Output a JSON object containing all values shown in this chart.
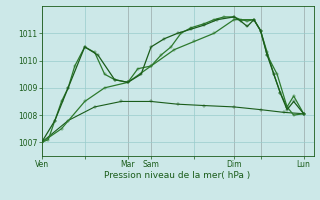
{
  "bg_color": "#cce8e8",
  "grid_color": "#99cccc",
  "line_color_dark": "#1a5c1a",
  "line_color_mid": "#2d7a2d",
  "xlabel": "Pression niveau de la mer( hPa )",
  "ylim": [
    1006.5,
    1012.0
  ],
  "yticks": [
    1007,
    1008,
    1009,
    1010,
    1011
  ],
  "xtick_labels": [
    "Ven",
    "",
    "Mar",
    "Sam",
    "",
    "Dim",
    "",
    "Lun"
  ],
  "xtick_positions": [
    0,
    13,
    26,
    33,
    46,
    58,
    66,
    79
  ],
  "vline_positions": [
    0,
    26,
    33,
    58,
    66,
    79
  ],
  "vline_color": "#cc8888",
  "xlim": [
    0,
    82
  ],
  "series1_x": [
    0,
    2,
    4,
    6,
    8,
    10,
    13,
    16,
    19,
    22,
    26,
    29,
    33,
    36,
    39,
    42,
    45,
    49,
    52,
    55,
    58,
    60,
    62,
    64,
    66,
    68,
    70,
    72,
    74,
    76,
    79
  ],
  "series1_y": [
    1007.0,
    1007.1,
    1007.8,
    1008.5,
    1009.0,
    1009.8,
    1010.5,
    1010.3,
    1009.5,
    1009.3,
    1009.2,
    1009.7,
    1009.8,
    1010.2,
    1010.5,
    1011.0,
    1011.2,
    1011.35,
    1011.5,
    1011.6,
    1011.6,
    1011.5,
    1011.45,
    1011.5,
    1011.1,
    1010.3,
    1009.5,
    1008.8,
    1008.3,
    1008.0,
    1008.05
  ],
  "series2_x": [
    0,
    4,
    8,
    13,
    17,
    22,
    26,
    30,
    33,
    37,
    41,
    45,
    49,
    53,
    58,
    60,
    62,
    64,
    66,
    68,
    70,
    72,
    74,
    76,
    79
  ],
  "series2_y": [
    1007.0,
    1007.8,
    1009.0,
    1010.5,
    1010.2,
    1009.3,
    1009.2,
    1009.5,
    1010.5,
    1010.8,
    1011.0,
    1011.15,
    1011.3,
    1011.5,
    1011.6,
    1011.45,
    1011.25,
    1011.5,
    1011.1,
    1010.2,
    1009.5,
    1008.8,
    1008.2,
    1008.5,
    1008.05
  ],
  "series3_x": [
    0,
    8,
    16,
    24,
    33,
    41,
    49,
    58,
    66,
    73,
    79
  ],
  "series3_y": [
    1007.0,
    1007.8,
    1008.3,
    1008.5,
    1008.5,
    1008.4,
    1008.35,
    1008.3,
    1008.2,
    1008.1,
    1008.05
  ],
  "series4_x": [
    0,
    6,
    13,
    19,
    26,
    33,
    40,
    46,
    52,
    58,
    64,
    66,
    68,
    71,
    74,
    76,
    79
  ],
  "series4_y": [
    1007.0,
    1007.5,
    1008.5,
    1009.0,
    1009.2,
    1009.8,
    1010.4,
    1010.7,
    1011.0,
    1011.5,
    1011.5,
    1011.1,
    1010.2,
    1009.5,
    1008.3,
    1008.7,
    1008.05
  ]
}
